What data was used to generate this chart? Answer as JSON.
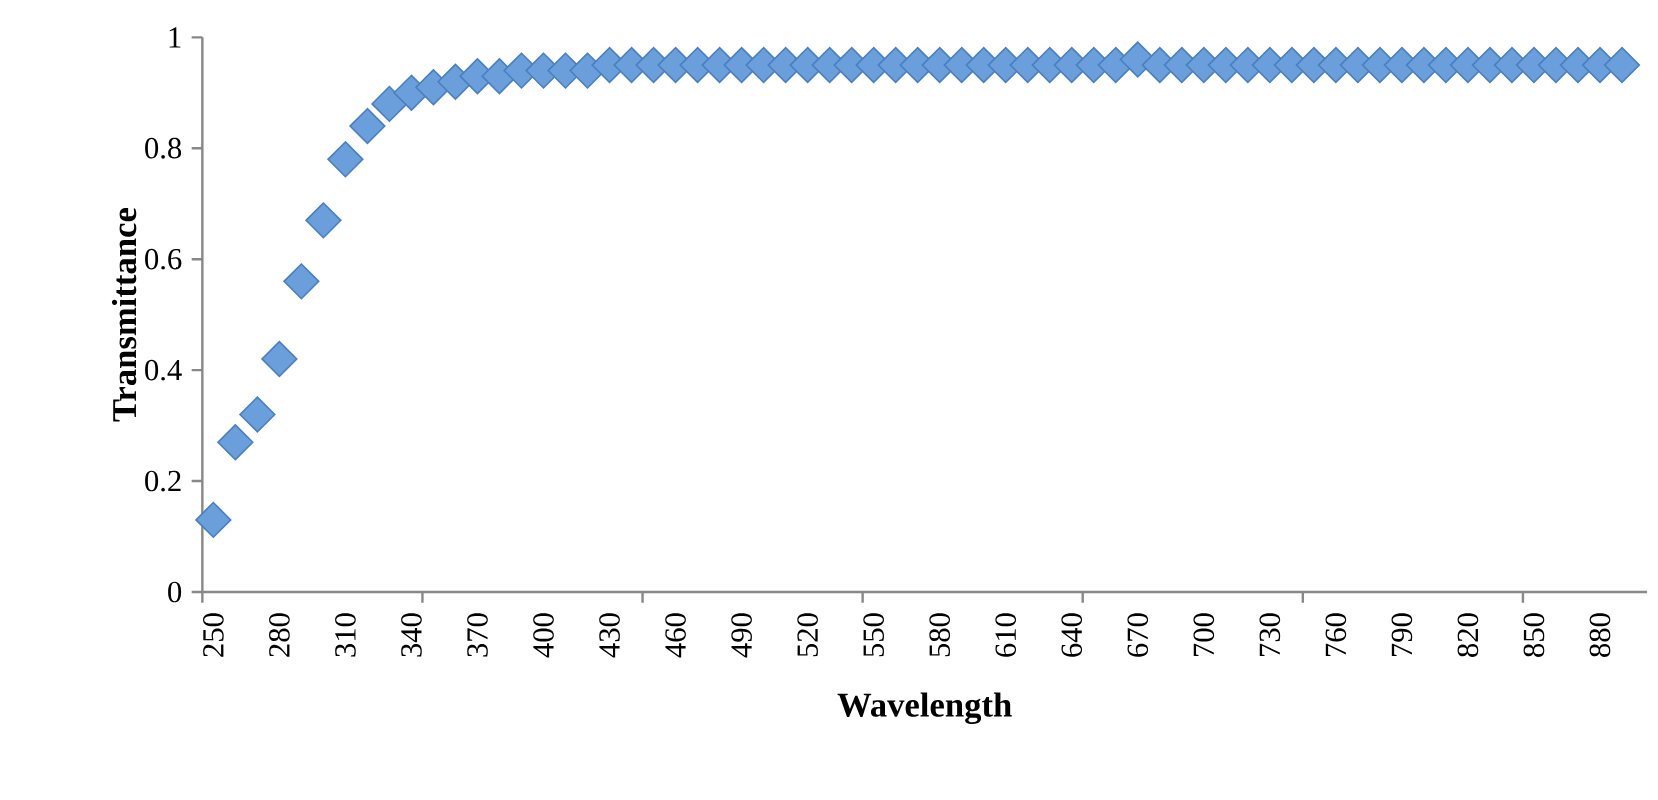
{
  "chart_data": {
    "type": "scatter",
    "xlabel": "Wavelength",
    "ylabel": "Transmittance",
    "marker": "diamond",
    "color": "#6a9fdc",
    "categories": [
      "250",
      null,
      null,
      "280",
      null,
      null,
      "310",
      null,
      null,
      "340",
      null,
      null,
      "370",
      null,
      null,
      "400",
      null,
      null,
      "430",
      null,
      null,
      "460",
      null,
      null,
      "490",
      null,
      null,
      "520",
      null,
      null,
      "550",
      null,
      null,
      "580",
      null,
      null,
      "610",
      null,
      null,
      "640",
      null,
      null,
      "670",
      null,
      null,
      "700",
      null,
      null,
      "730",
      null,
      null,
      "760",
      null,
      null,
      "790",
      null,
      null,
      "820",
      null,
      null,
      "850",
      null,
      null,
      "880",
      null
    ],
    "values": [
      0.13,
      0.27,
      0.32,
      0.42,
      0.56,
      0.67,
      0.78,
      0.84,
      0.88,
      0.9,
      0.91,
      0.92,
      0.93,
      0.93,
      0.94,
      0.94,
      0.94,
      0.94,
      0.95,
      0.95,
      0.95,
      0.95,
      0.95,
      0.95,
      0.95,
      0.95,
      0.95,
      0.95,
      0.95,
      0.95,
      0.95,
      0.95,
      0.95,
      0.95,
      0.95,
      0.95,
      0.95,
      0.95,
      0.95,
      0.95,
      0.95,
      0.95,
      0.96,
      0.95,
      0.95,
      0.95,
      0.95,
      0.95,
      0.95,
      0.95,
      0.95,
      0.95,
      0.95,
      0.95,
      0.95,
      0.95,
      0.95,
      0.95,
      0.95,
      0.95,
      0.95,
      0.95,
      0.95,
      0.95,
      0.95
    ],
    "ylim": [
      0,
      1
    ],
    "yticks": [
      0,
      0.2,
      0.4,
      0.6,
      0.8,
      1
    ]
  }
}
